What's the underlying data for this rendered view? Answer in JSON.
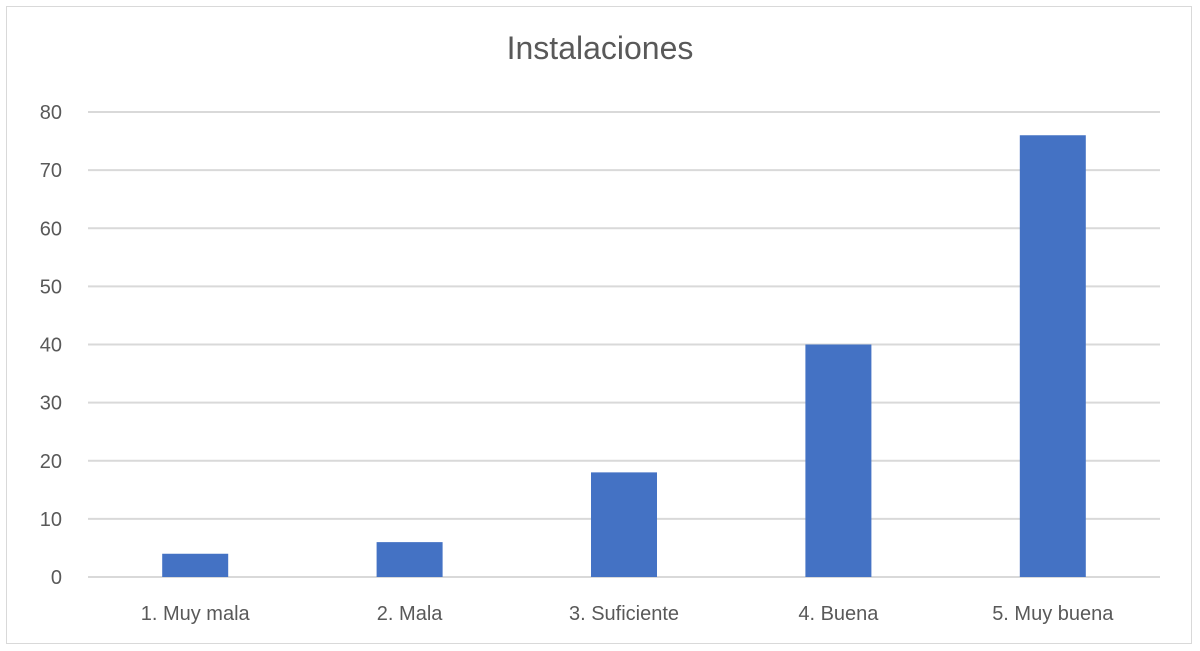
{
  "chart_data": {
    "type": "bar",
    "title": "Instalaciones",
    "categories": [
      "1. Muy mala",
      "2. Mala",
      "3. Suficiente",
      "4. Buena",
      "5. Muy buena"
    ],
    "values": [
      4,
      6,
      18,
      40,
      76
    ],
    "xlabel": "",
    "ylabel": "",
    "ylim": [
      0,
      80
    ],
    "yticks": [
      0,
      10,
      20,
      30,
      40,
      50,
      60,
      70,
      80
    ],
    "grid": true,
    "legend": "none",
    "bar_color": "#4472C4",
    "grid_color": "#d9d9d9"
  }
}
